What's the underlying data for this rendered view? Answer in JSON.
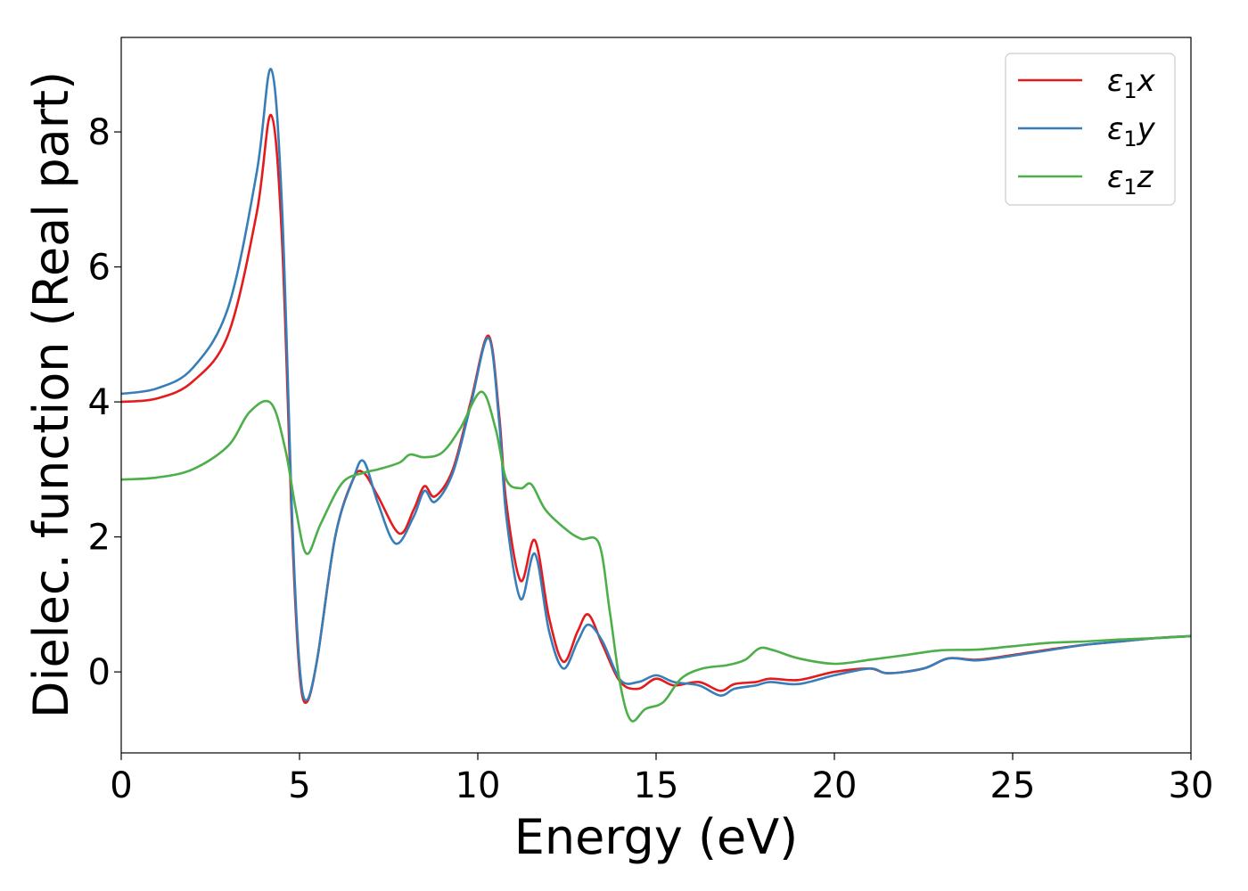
{
  "chart_data": {
    "type": "line",
    "xlabel": "Energy (eV)",
    "ylabel": "Dielec. function (Real part)",
    "xlim": [
      0,
      30
    ],
    "ylim": [
      -1.2,
      9.4
    ],
    "xticks": [
      0,
      5,
      10,
      15,
      20,
      25,
      30
    ],
    "yticks": [
      0,
      2,
      4,
      6,
      8
    ],
    "legend_position": "top-right",
    "grid": false,
    "series": [
      {
        "name": "ε1x",
        "legend_base": "ε",
        "legend_sub": "1",
        "legend_var": "x",
        "color": "#e41a1c",
        "points": [
          [
            0,
            4.0
          ],
          [
            1,
            4.05
          ],
          [
            2,
            4.3
          ],
          [
            3,
            5.0
          ],
          [
            3.8,
            6.8
          ],
          [
            4.2,
            8.25
          ],
          [
            4.5,
            6.5
          ],
          [
            4.8,
            2.0
          ],
          [
            5.0,
            0.0
          ],
          [
            5.2,
            -0.45
          ],
          [
            5.5,
            0.2
          ],
          [
            6.0,
            2.0
          ],
          [
            6.5,
            2.85
          ],
          [
            6.8,
            2.95
          ],
          [
            7.2,
            2.6
          ],
          [
            7.8,
            2.05
          ],
          [
            8.2,
            2.4
          ],
          [
            8.5,
            2.75
          ],
          [
            8.8,
            2.6
          ],
          [
            9.3,
            3.0
          ],
          [
            9.8,
            4.0
          ],
          [
            10.3,
            4.98
          ],
          [
            10.6,
            3.8
          ],
          [
            10.8,
            2.5
          ],
          [
            11.2,
            1.35
          ],
          [
            11.6,
            1.95
          ],
          [
            12.0,
            0.8
          ],
          [
            12.4,
            0.15
          ],
          [
            12.8,
            0.6
          ],
          [
            13.1,
            0.85
          ],
          [
            13.5,
            0.4
          ],
          [
            14.0,
            -0.15
          ],
          [
            14.5,
            -0.25
          ],
          [
            15.0,
            -0.1
          ],
          [
            15.5,
            -0.2
          ],
          [
            16.2,
            -0.15
          ],
          [
            16.8,
            -0.28
          ],
          [
            17.2,
            -0.18
          ],
          [
            17.8,
            -0.15
          ],
          [
            18.2,
            -0.1
          ],
          [
            19.0,
            -0.12
          ],
          [
            20.0,
            0.0
          ],
          [
            21.0,
            0.05
          ],
          [
            21.5,
            -0.02
          ],
          [
            22.5,
            0.05
          ],
          [
            23.2,
            0.2
          ],
          [
            24.0,
            0.18
          ],
          [
            25.0,
            0.25
          ],
          [
            26.0,
            0.33
          ],
          [
            27.0,
            0.4
          ],
          [
            28.0,
            0.45
          ],
          [
            29.0,
            0.5
          ],
          [
            30.0,
            0.53
          ]
        ]
      },
      {
        "name": "ε1y",
        "legend_base": "ε",
        "legend_sub": "1",
        "legend_var": "y",
        "color": "#377eb8",
        "points": [
          [
            0,
            4.12
          ],
          [
            1,
            4.2
          ],
          [
            2,
            4.5
          ],
          [
            3,
            5.4
          ],
          [
            3.8,
            7.4
          ],
          [
            4.2,
            8.93
          ],
          [
            4.5,
            7.0
          ],
          [
            4.8,
            2.2
          ],
          [
            5.0,
            0.1
          ],
          [
            5.2,
            -0.42
          ],
          [
            5.5,
            0.2
          ],
          [
            6.0,
            2.0
          ],
          [
            6.5,
            2.85
          ],
          [
            6.8,
            3.12
          ],
          [
            7.2,
            2.5
          ],
          [
            7.7,
            1.9
          ],
          [
            8.2,
            2.3
          ],
          [
            8.5,
            2.68
          ],
          [
            8.8,
            2.52
          ],
          [
            9.3,
            2.95
          ],
          [
            9.8,
            3.95
          ],
          [
            10.3,
            4.95
          ],
          [
            10.6,
            3.7
          ],
          [
            10.8,
            2.3
          ],
          [
            11.2,
            1.08
          ],
          [
            11.6,
            1.75
          ],
          [
            12.0,
            0.6
          ],
          [
            12.4,
            0.05
          ],
          [
            12.8,
            0.45
          ],
          [
            13.1,
            0.7
          ],
          [
            13.5,
            0.45
          ],
          [
            14.0,
            -0.12
          ],
          [
            14.5,
            -0.15
          ],
          [
            15.0,
            -0.05
          ],
          [
            15.5,
            -0.15
          ],
          [
            16.2,
            -0.2
          ],
          [
            16.8,
            -0.35
          ],
          [
            17.2,
            -0.25
          ],
          [
            17.8,
            -0.2
          ],
          [
            18.2,
            -0.15
          ],
          [
            19.0,
            -0.18
          ],
          [
            20.0,
            -0.05
          ],
          [
            21.0,
            0.05
          ],
          [
            21.5,
            -0.02
          ],
          [
            22.5,
            0.05
          ],
          [
            23.2,
            0.2
          ],
          [
            24.0,
            0.17
          ],
          [
            25.0,
            0.24
          ],
          [
            26.0,
            0.32
          ],
          [
            27.0,
            0.4
          ],
          [
            28.0,
            0.45
          ],
          [
            29.0,
            0.5
          ],
          [
            30.0,
            0.53
          ]
        ]
      },
      {
        "name": "ε1z",
        "legend_base": "ε",
        "legend_sub": "1",
        "legend_var": "z",
        "color": "#4daf4a",
        "points": [
          [
            0,
            2.85
          ],
          [
            1,
            2.88
          ],
          [
            2,
            3.0
          ],
          [
            3,
            3.35
          ],
          [
            3.6,
            3.85
          ],
          [
            4.2,
            3.98
          ],
          [
            4.6,
            3.3
          ],
          [
            4.9,
            2.4
          ],
          [
            5.2,
            1.75
          ],
          [
            5.6,
            2.2
          ],
          [
            6.2,
            2.8
          ],
          [
            6.8,
            2.95
          ],
          [
            7.2,
            3.0
          ],
          [
            7.8,
            3.1
          ],
          [
            8.1,
            3.22
          ],
          [
            8.5,
            3.18
          ],
          [
            9.0,
            3.25
          ],
          [
            9.5,
            3.6
          ],
          [
            10.1,
            4.15
          ],
          [
            10.5,
            3.6
          ],
          [
            10.8,
            2.85
          ],
          [
            11.2,
            2.72
          ],
          [
            11.5,
            2.78
          ],
          [
            11.9,
            2.4
          ],
          [
            12.5,
            2.1
          ],
          [
            12.9,
            1.97
          ],
          [
            13.4,
            1.9
          ],
          [
            13.7,
            0.9
          ],
          [
            14.0,
            -0.2
          ],
          [
            14.3,
            -0.72
          ],
          [
            14.7,
            -0.55
          ],
          [
            15.2,
            -0.45
          ],
          [
            15.7,
            -0.1
          ],
          [
            16.3,
            0.05
          ],
          [
            17.0,
            0.1
          ],
          [
            17.5,
            0.18
          ],
          [
            17.9,
            0.35
          ],
          [
            18.3,
            0.32
          ],
          [
            19.0,
            0.2
          ],
          [
            20.0,
            0.12
          ],
          [
            21.0,
            0.18
          ],
          [
            22.0,
            0.25
          ],
          [
            23.0,
            0.32
          ],
          [
            24.0,
            0.33
          ],
          [
            25.0,
            0.38
          ],
          [
            26.0,
            0.43
          ],
          [
            27.0,
            0.45
          ],
          [
            28.0,
            0.48
          ],
          [
            29.0,
            0.5
          ],
          [
            30.0,
            0.53
          ]
        ]
      }
    ]
  }
}
